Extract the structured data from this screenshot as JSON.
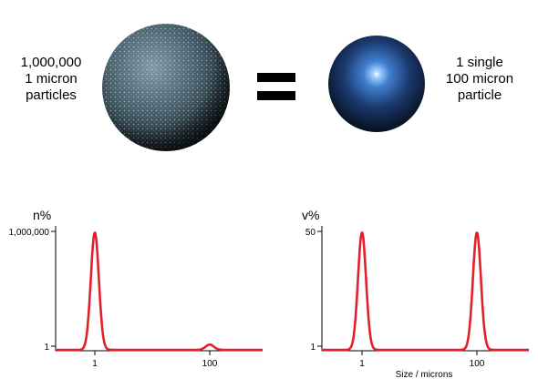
{
  "illustration": {
    "left_label": [
      "1,000,000",
      "1 micron",
      "particles"
    ],
    "equals": "=",
    "right_label": [
      "1 single",
      "100 micron",
      "particle"
    ]
  },
  "chart_data": [
    {
      "type": "line",
      "ylabel": "n%",
      "xlabel": "",
      "x_scale": "log",
      "x_ticks": [
        "1",
        "100"
      ],
      "y_ticks": [
        "1,000,000",
        "1"
      ],
      "series": [
        {
          "points": [
            {
              "x": 1,
              "y": 1000000
            },
            {
              "x": 100,
              "y": 1
            }
          ]
        }
      ],
      "colors": {
        "curve": "#e0202a",
        "axis": "#000000"
      }
    },
    {
      "type": "line",
      "ylabel": "v%",
      "xlabel": "Size / microns",
      "x_scale": "log",
      "x_ticks": [
        "1",
        "100"
      ],
      "y_ticks": [
        "50",
        "1"
      ],
      "series": [
        {
          "points": [
            {
              "x": 1,
              "y": 50
            },
            {
              "x": 100,
              "y": 50
            }
          ]
        }
      ],
      "colors": {
        "curve": "#e0202a",
        "axis": "#000000"
      }
    }
  ]
}
